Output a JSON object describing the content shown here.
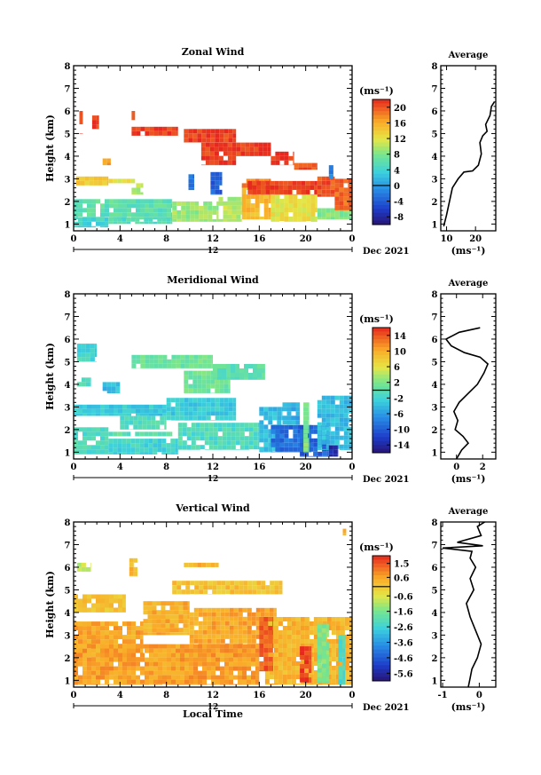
{
  "figure": {
    "date_label": "Dec 2021",
    "bottom_xlabel": "Local Time",
    "cbar_unit": "(ms⁻¹)",
    "avg_unit": "(ms⁻¹)",
    "day_marker": "12"
  },
  "chart_data": [
    {
      "type": "heatmap",
      "title": "Zonal Wind",
      "ylabel": "Height (km)",
      "xticks": [
        "0",
        "4",
        "8",
        "12",
        "16",
        "20",
        "0"
      ],
      "xlim": [
        0,
        24
      ],
      "yticks": [
        "1",
        "2",
        "3",
        "4",
        "5",
        "6",
        "7",
        "8"
      ],
      "ylim": [
        0.7,
        8
      ],
      "colorbar": {
        "ticks": [
          "20",
          "16",
          "12",
          "8",
          "4",
          "0",
          "-4",
          "-8"
        ],
        "range": [
          -10,
          22
        ]
      },
      "regions": [
        {
          "x": [
            0.5,
            0.8
          ],
          "y": [
            5.0,
            6.0
          ],
          "v": 21
        },
        {
          "x": [
            1.6,
            2.2
          ],
          "y": [
            5.2,
            5.8
          ],
          "v": 21
        },
        {
          "x": [
            5.0,
            5.3
          ],
          "y": [
            5.6,
            6.0
          ],
          "v": 21
        },
        {
          "x": [
            5.0,
            9.0
          ],
          "y": [
            4.9,
            5.3
          ],
          "v": 21
        },
        {
          "x": [
            9.5,
            14.0
          ],
          "y": [
            4.6,
            5.2
          ],
          "v": 21
        },
        {
          "x": [
            11.0,
            14.0
          ],
          "y": [
            3.6,
            4.6
          ],
          "v": 21
        },
        {
          "x": [
            14.0,
            17.0
          ],
          "y": [
            4.0,
            4.6
          ],
          "v": 21
        },
        {
          "x": [
            17.0,
            19.0
          ],
          "y": [
            3.6,
            4.2
          ],
          "v": 21
        },
        {
          "x": [
            19.0,
            21.0
          ],
          "y": [
            3.4,
            3.7
          ],
          "v": 20
        },
        {
          "x": [
            2.5,
            3.2
          ],
          "y": [
            3.6,
            3.9
          ],
          "v": 17
        },
        {
          "x": [
            3.0,
            6.0
          ],
          "y": [
            2.8,
            3.0
          ],
          "v": 12
        },
        {
          "x": [
            0.2,
            3.0
          ],
          "y": [
            2.7,
            3.1
          ],
          "v": 14
        },
        {
          "x": [
            5.0,
            6.0
          ],
          "y": [
            2.3,
            2.8
          ],
          "v": 10
        },
        {
          "x": [
            0,
            8.5
          ],
          "y": [
            1.2,
            2.1
          ],
          "v": 6
        },
        {
          "x": [
            0,
            3.0
          ],
          "y": [
            0.85,
            1.3
          ],
          "v": 4
        },
        {
          "x": [
            3.0,
            8.5
          ],
          "y": [
            1.0,
            1.3
          ],
          "v": 5
        },
        {
          "x": [
            8.5,
            12.5
          ],
          "y": [
            1.1,
            2.0
          ],
          "v": 9
        },
        {
          "x": [
            12.5,
            14.5
          ],
          "y": [
            1.1,
            2.2
          ],
          "v": 10
        },
        {
          "x": [
            14.5,
            17.0
          ],
          "y": [
            1.2,
            2.7
          ],
          "v": 15
        },
        {
          "x": [
            17.0,
            21.0
          ],
          "y": [
            1.1,
            2.7
          ],
          "v": 12
        },
        {
          "x": [
            14.5,
            17.0
          ],
          "y": [
            2.6,
            3.0
          ],
          "v": 18
        },
        {
          "x": [
            15.0,
            21.0
          ],
          "y": [
            2.3,
            2.9
          ],
          "v": 21
        },
        {
          "x": [
            21.0,
            24.0
          ],
          "y": [
            1.2,
            1.7
          ],
          "v": 8
        },
        {
          "x": [
            21.0,
            22.5
          ],
          "y": [
            2.2,
            3.1
          ],
          "v": 20
        },
        {
          "x": [
            22.5,
            24.0
          ],
          "y": [
            1.6,
            3.0
          ],
          "v": 19
        },
        {
          "x": [
            9.9,
            10.4
          ],
          "y": [
            2.5,
            3.2
          ],
          "v": -3
        },
        {
          "x": [
            11.8,
            12.8
          ],
          "y": [
            2.3,
            3.3
          ],
          "v": -4
        },
        {
          "x": [
            22.0,
            22.4
          ],
          "y": [
            3.0,
            3.6
          ],
          "v": -2
        }
      ],
      "average": {
        "xticks": [
          "10",
          "20"
        ],
        "xlim": [
          8,
          27
        ],
        "profile": [
          [
            9,
            0.9
          ],
          [
            10,
            1.4
          ],
          [
            11,
            2.0
          ],
          [
            12,
            2.6
          ],
          [
            14,
            3.0
          ],
          [
            16,
            3.3
          ],
          [
            19,
            3.35
          ],
          [
            21,
            3.6
          ],
          [
            22,
            4.1
          ],
          [
            21.5,
            4.6
          ],
          [
            22.5,
            4.9
          ],
          [
            24,
            5.1
          ],
          [
            23.5,
            5.4
          ],
          [
            25,
            5.8
          ],
          [
            25.5,
            6.2
          ],
          [
            26.5,
            6.4
          ]
        ]
      }
    },
    {
      "type": "heatmap",
      "title": "Meridional Wind",
      "ylabel": "Height (km)",
      "xticks": [
        "0",
        "4",
        "8",
        "12",
        "16",
        "20",
        "0"
      ],
      "xlim": [
        0,
        24
      ],
      "yticks": [
        "1",
        "2",
        "3",
        "4",
        "5",
        "6",
        "7",
        "8"
      ],
      "ylim": [
        0.7,
        8
      ],
      "colorbar": {
        "ticks": [
          "14",
          "10",
          "6",
          "2",
          "-2",
          "-6",
          "-10",
          "-14"
        ],
        "range": [
          -16,
          16
        ]
      },
      "regions": [
        {
          "x": [
            0.3,
            2.0
          ],
          "y": [
            5.0,
            5.8
          ],
          "v": -2
        },
        {
          "x": [
            0.3,
            1.5
          ],
          "y": [
            3.9,
            4.3
          ],
          "v": -1
        },
        {
          "x": [
            2.5,
            4.0
          ],
          "y": [
            3.6,
            4.1
          ],
          "v": -4
        },
        {
          "x": [
            5.0,
            12.0
          ],
          "y": [
            4.7,
            5.3
          ],
          "v": 1
        },
        {
          "x": [
            9.5,
            13.5
          ],
          "y": [
            3.6,
            4.6
          ],
          "v": 1
        },
        {
          "x": [
            12.0,
            16.5
          ],
          "y": [
            4.2,
            4.9
          ],
          "v": 0
        },
        {
          "x": [
            0,
            8.0
          ],
          "y": [
            2.6,
            3.1
          ],
          "v": -3
        },
        {
          "x": [
            4.0,
            8.0
          ],
          "y": [
            2.0,
            2.6
          ],
          "v": -1
        },
        {
          "x": [
            8.0,
            14.0
          ],
          "y": [
            2.4,
            3.4
          ],
          "v": -3
        },
        {
          "x": [
            0,
            3.0
          ],
          "y": [
            0.9,
            2.1
          ],
          "v": -1
        },
        {
          "x": [
            3.0,
            8.5
          ],
          "y": [
            1.7,
            1.9
          ],
          "v": 0
        },
        {
          "x": [
            3.0,
            9.0
          ],
          "y": [
            0.9,
            1.6
          ],
          "v": -2
        },
        {
          "x": [
            9.0,
            16.0
          ],
          "y": [
            1.1,
            2.3
          ],
          "v": -1
        },
        {
          "x": [
            16.0,
            18.0
          ],
          "y": [
            1.0,
            3.0
          ],
          "v": -4
        },
        {
          "x": [
            17.0,
            20.5
          ],
          "y": [
            1.0,
            2.2
          ],
          "v": -9
        },
        {
          "x": [
            18.0,
            19.5
          ],
          "y": [
            2.2,
            3.2
          ],
          "v": -5
        },
        {
          "x": [
            19.5,
            22.0
          ],
          "y": [
            0.8,
            2.2
          ],
          "v": -10
        },
        {
          "x": [
            21.0,
            24.0
          ],
          "y": [
            1.1,
            3.5
          ],
          "v": -4
        },
        {
          "x": [
            22.0,
            22.8
          ],
          "y": [
            0.8,
            1.3
          ],
          "v": -14
        },
        {
          "x": [
            19.8,
            20.3
          ],
          "y": [
            1.0,
            3.2
          ],
          "v": 2
        }
      ],
      "average": {
        "xticks": [
          "0",
          "2"
        ],
        "xlim": [
          -1.2,
          3
        ],
        "profile": [
          [
            0,
            0.7
          ],
          [
            0.4,
            1.1
          ],
          [
            0.9,
            1.4
          ],
          [
            0.5,
            1.7
          ],
          [
            -0.1,
            2.0
          ],
          [
            0.1,
            2.4
          ],
          [
            -0.2,
            2.8
          ],
          [
            0.2,
            3.2
          ],
          [
            0.9,
            3.6
          ],
          [
            1.6,
            4.0
          ],
          [
            2.1,
            4.5
          ],
          [
            2.4,
            4.9
          ],
          [
            1.8,
            5.2
          ],
          [
            0.6,
            5.4
          ],
          [
            -0.4,
            5.7
          ],
          [
            -0.8,
            6.0
          ],
          [
            0.2,
            6.3
          ],
          [
            1.8,
            6.5
          ]
        ]
      }
    },
    {
      "type": "heatmap",
      "title": "Vertical Wind",
      "ylabel": "Height (km)",
      "xticks": [
        "0",
        "4",
        "8",
        "12",
        "16",
        "20",
        "0"
      ],
      "xlim": [
        0,
        24
      ],
      "yticks": [
        "1",
        "2",
        "3",
        "4",
        "5",
        "6",
        "7",
        "8"
      ],
      "ylim": [
        0.7,
        8
      ],
      "colorbar": {
        "ticks": [
          "1.5",
          "0.6",
          "-0.6",
          "-1.6",
          "-2.6",
          "-3.6",
          "-4.6",
          "-5.6"
        ],
        "range": [
          -6.1,
          2.0
        ]
      },
      "regions": [
        {
          "x": [
            0.3,
            1.5
          ],
          "y": [
            5.8,
            6.2
          ],
          "v": -0.9
        },
        {
          "x": [
            4.8,
            5.5
          ],
          "y": [
            5.6,
            6.4
          ],
          "v": 0.2
        },
        {
          "x": [
            9.5,
            12.5
          ],
          "y": [
            6.0,
            6.2
          ],
          "v": 0.3
        },
        {
          "x": [
            0,
            4.5
          ],
          "y": [
            4.0,
            4.8
          ],
          "v": 0.1
        },
        {
          "x": [
            8.5,
            18.0
          ],
          "y": [
            4.8,
            5.4
          ],
          "v": 0.1
        },
        {
          "x": [
            6.0,
            10.0
          ],
          "y": [
            3.0,
            4.5
          ],
          "v": 0.4
        },
        {
          "x": [
            0,
            6.0
          ],
          "y": [
            2.0,
            3.6
          ],
          "v": 0.5
        },
        {
          "x": [
            0,
            16.0
          ],
          "y": [
            0.8,
            2.6
          ],
          "v": 0.6
        },
        {
          "x": [
            10.0,
            17.5
          ],
          "y": [
            2.6,
            4.2
          ],
          "v": 0.5
        },
        {
          "x": [
            16.5,
            24.0
          ],
          "y": [
            0.8,
            3.8
          ],
          "v": 0.3
        },
        {
          "x": [
            16.0,
            17.2
          ],
          "y": [
            1.4,
            3.8
          ],
          "v": 1.4
        },
        {
          "x": [
            19.5,
            20.5
          ],
          "y": [
            0.9,
            2.5
          ],
          "v": 1.7
        },
        {
          "x": [
            21.0,
            22.0
          ],
          "y": [
            0.9,
            3.5
          ],
          "v": -1.6
        },
        {
          "x": [
            22.8,
            23.4
          ],
          "y": [
            0.8,
            3.0
          ],
          "v": -2.4
        },
        {
          "x": [
            23.2,
            23.5
          ],
          "y": [
            7.4,
            7.7
          ],
          "v": 0.5
        }
      ],
      "average": {
        "xticks": [
          "-1",
          "0"
        ],
        "xlim": [
          -1.05,
          0.45
        ],
        "profile": [
          [
            -0.3,
            0.7
          ],
          [
            -0.25,
            1.1
          ],
          [
            -0.2,
            1.5
          ],
          [
            -0.05,
            2.0
          ],
          [
            0.05,
            2.6
          ],
          [
            -0.1,
            3.2
          ],
          [
            -0.25,
            3.8
          ],
          [
            -0.35,
            4.4
          ],
          [
            -0.15,
            5.0
          ],
          [
            -0.25,
            5.5
          ],
          [
            -0.1,
            6.0
          ],
          [
            -0.25,
            6.4
          ],
          [
            -0.2,
            6.7
          ],
          [
            -1.0,
            6.85
          ],
          [
            0.1,
            6.95
          ],
          [
            -0.6,
            7.1
          ],
          [
            0.05,
            7.4
          ],
          [
            -0.05,
            7.8
          ],
          [
            0.15,
            8.0
          ]
        ]
      }
    }
  ]
}
